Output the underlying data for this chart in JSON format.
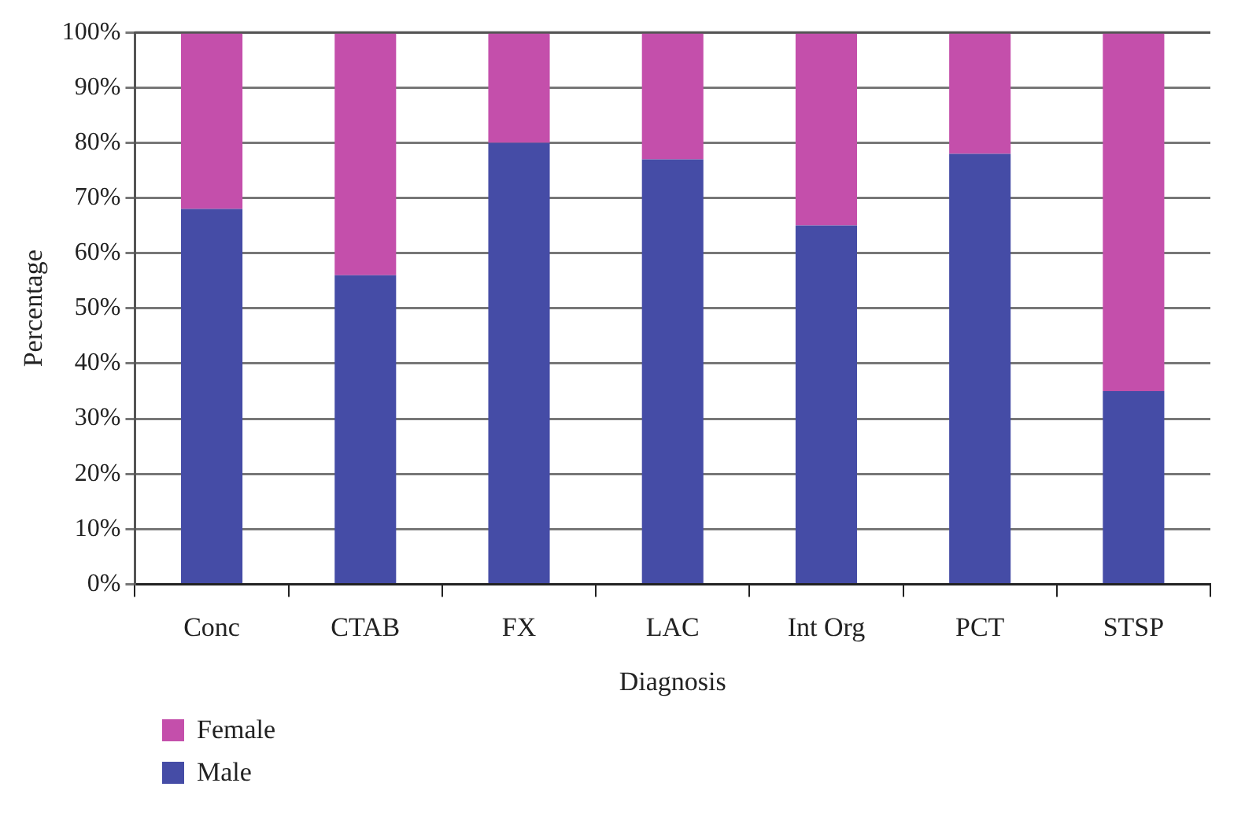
{
  "chart_data": {
    "type": "bar",
    "stacked": true,
    "xlabel": "Diagnosis",
    "ylabel": "Percentage",
    "categories": [
      "Conc",
      "CTAB",
      "FX",
      "LAC",
      "Int Org",
      "PCT",
      "STSP"
    ],
    "series": [
      {
        "name": "Male",
        "color": "#454ca6",
        "values": [
          68,
          56,
          80,
          77,
          65,
          78,
          35
        ]
      },
      {
        "name": "Female",
        "color": "#c44fab",
        "values": [
          32,
          44,
          20,
          23,
          35,
          22,
          65
        ]
      }
    ],
    "ylim": [
      0,
      100
    ],
    "yticks": [
      {
        "value": 0,
        "label": "0%"
      },
      {
        "value": 10,
        "label": "10%"
      },
      {
        "value": 20,
        "label": "20%"
      },
      {
        "value": 30,
        "label": "30%"
      },
      {
        "value": 40,
        "label": "40%"
      },
      {
        "value": 50,
        "label": "50%"
      },
      {
        "value": 60,
        "label": "60%"
      },
      {
        "value": 70,
        "label": "70%"
      },
      {
        "value": 80,
        "label": "80%"
      },
      {
        "value": 90,
        "label": "90%"
      },
      {
        "value": 100,
        "label": "100%"
      }
    ],
    "grid": "y",
    "legend": "bottom left"
  }
}
